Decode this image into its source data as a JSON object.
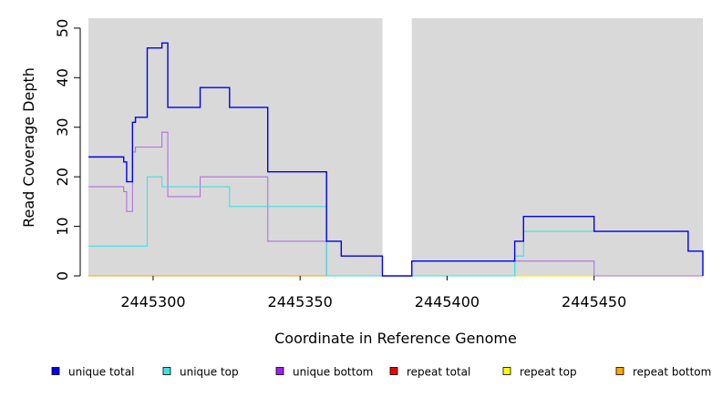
{
  "chart_data": {
    "type": "line",
    "xlabel": "Coordinate in Reference Genome",
    "ylabel": "Read Coverage Depth",
    "xlim": [
      2445278,
      2445487
    ],
    "ylim": [
      0,
      52
    ],
    "x_ticks": [
      2445300,
      2445350,
      2445400,
      2445450
    ],
    "x_tick_labels": [
      "2445300",
      "2445350",
      "2445400",
      "2445450"
    ],
    "y_ticks": [
      0,
      10,
      20,
      30,
      40,
      50
    ],
    "y_tick_labels": [
      "0",
      "10",
      "20",
      "30",
      "40",
      "50"
    ],
    "background_color": "#d9d9d9",
    "gap_regions": [
      [
        2445378,
        2445388
      ]
    ],
    "grid": false,
    "legend_position": "bottom",
    "series": [
      {
        "name": "unique total",
        "color": "#0000ee",
        "points": [
          [
            2445278,
            24
          ],
          [
            2445290,
            24
          ],
          [
            2445290,
            23
          ],
          [
            2445291,
            23
          ],
          [
            2445291,
            19
          ],
          [
            2445293,
            19
          ],
          [
            2445293,
            31
          ],
          [
            2445294,
            31
          ],
          [
            2445294,
            32
          ],
          [
            2445298,
            32
          ],
          [
            2445298,
            46
          ],
          [
            2445303,
            46
          ],
          [
            2445303,
            47
          ],
          [
            2445305,
            47
          ],
          [
            2445305,
            34
          ],
          [
            2445316,
            34
          ],
          [
            2445316,
            38
          ],
          [
            2445326,
            38
          ],
          [
            2445326,
            34
          ],
          [
            2445339,
            34
          ],
          [
            2445339,
            21
          ],
          [
            2445359,
            21
          ],
          [
            2445359,
            7
          ],
          [
            2445364,
            7
          ],
          [
            2445364,
            4
          ],
          [
            2445378,
            4
          ],
          [
            2445378,
            0
          ],
          [
            2445388,
            0
          ],
          [
            2445388,
            3
          ],
          [
            2445423,
            3
          ],
          [
            2445423,
            7
          ],
          [
            2445426,
            7
          ],
          [
            2445426,
            12
          ],
          [
            2445450,
            12
          ],
          [
            2445450,
            9
          ],
          [
            2445482,
            9
          ],
          [
            2445482,
            5
          ],
          [
            2445487,
            5
          ],
          [
            2445487,
            0
          ]
        ]
      },
      {
        "name": "unique top",
        "color": "#40e0e0",
        "points": [
          [
            2445278,
            6
          ],
          [
            2445298,
            6
          ],
          [
            2445298,
            20
          ],
          [
            2445303,
            20
          ],
          [
            2445303,
            18
          ],
          [
            2445316,
            18
          ],
          [
            2445316,
            18
          ],
          [
            2445326,
            18
          ],
          [
            2445326,
            14
          ],
          [
            2445359,
            14
          ],
          [
            2445359,
            0
          ],
          [
            2445378,
            0
          ],
          [
            2445388,
            0
          ],
          [
            2445423,
            0
          ],
          [
            2445423,
            4
          ],
          [
            2445426,
            4
          ],
          [
            2445426,
            9
          ],
          [
            2445450,
            9
          ],
          [
            2445482,
            9
          ],
          [
            2445482,
            5
          ],
          [
            2445487,
            5
          ],
          [
            2445487,
            0
          ]
        ]
      },
      {
        "name": "unique bottom",
        "color": "#b070e0",
        "points": [
          [
            2445278,
            18
          ],
          [
            2445290,
            18
          ],
          [
            2445290,
            17
          ],
          [
            2445291,
            17
          ],
          [
            2445291,
            13
          ],
          [
            2445293,
            13
          ],
          [
            2445293,
            25
          ],
          [
            2445294,
            25
          ],
          [
            2445294,
            26
          ],
          [
            2445303,
            26
          ],
          [
            2445303,
            29
          ],
          [
            2445305,
            29
          ],
          [
            2445305,
            16
          ],
          [
            2445316,
            16
          ],
          [
            2445316,
            20
          ],
          [
            2445339,
            20
          ],
          [
            2445339,
            7
          ],
          [
            2445359,
            7
          ],
          [
            2445359,
            0
          ],
          [
            2445378,
            0
          ],
          [
            2445388,
            0
          ],
          [
            2445423,
            0
          ],
          [
            2445423,
            3
          ],
          [
            2445450,
            3
          ],
          [
            2445450,
            0
          ],
          [
            2445487,
            0
          ]
        ]
      },
      {
        "name": "repeat total",
        "color": "#ee0000",
        "points": [
          [
            2445278,
            0
          ],
          [
            2445487,
            0
          ]
        ]
      },
      {
        "name": "repeat top",
        "color": "#eeee00",
        "points": [
          [
            2445278,
            0
          ],
          [
            2445487,
            0
          ]
        ]
      },
      {
        "name": "repeat bottom",
        "color": "#ffa500",
        "points": [
          [
            2445278,
            0
          ],
          [
            2445378,
            0
          ]
        ]
      }
    ]
  },
  "legend": {
    "items": [
      {
        "label": "unique total",
        "color": "#0000ee"
      },
      {
        "label": "unique top",
        "color": "#40e0e0"
      },
      {
        "label": "unique bottom",
        "color": "#a020f0"
      },
      {
        "label": "repeat total",
        "color": "#ee0000"
      },
      {
        "label": "repeat top",
        "color": "#ffff00"
      },
      {
        "label": "repeat bottom",
        "color": "#ffa500"
      }
    ]
  }
}
